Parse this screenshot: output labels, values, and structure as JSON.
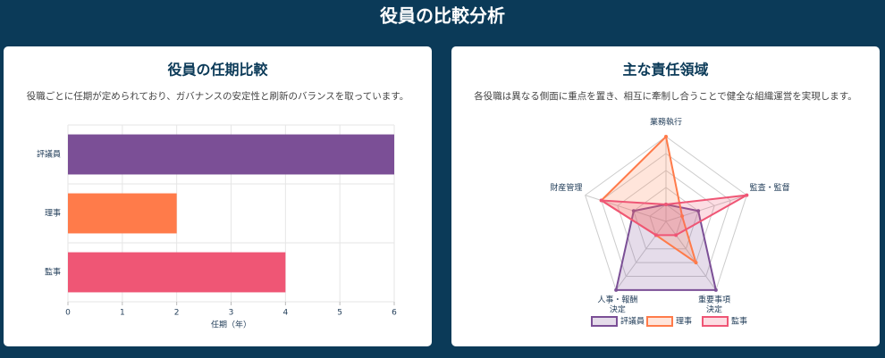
{
  "page_title": "役員の比較分析",
  "chart_data": [
    {
      "type": "bar",
      "title": "役員の任期比較",
      "subtitle": "役職ごとに任期が定められており、ガバナンスの安定性と刷新のバランスを取っています。",
      "categories": [
        "評議員",
        "理事",
        "監事"
      ],
      "values": [
        6,
        2,
        4
      ],
      "colors": [
        "#7b4f96",
        "#ff7b4a",
        "#ef5675"
      ],
      "x_label": "任期（年）",
      "xlim": [
        0,
        6
      ],
      "xticks": [
        0,
        1,
        2,
        3,
        4,
        5,
        6
      ],
      "grid": true
    },
    {
      "type": "radar",
      "title": "主な責任領域",
      "subtitle": "各役職は異なる側面に重点を置き、相互に牽制し合うことで健全な組織運営を実現します。",
      "categories": [
        [
          "業務執行"
        ],
        [
          "監査・監督"
        ],
        [
          "重要事項",
          "決定"
        ],
        [
          "人事・報酬",
          "決定"
        ],
        [
          "財産管理"
        ]
      ],
      "rlim": [
        0,
        5
      ],
      "rticks": [
        1,
        2,
        3,
        4,
        5
      ],
      "series": [
        {
          "name": "評議員",
          "color": "#7b4f96",
          "values": [
            1,
            2,
            5,
            5,
            2
          ]
        },
        {
          "name": "理事",
          "color": "#ff7b4a",
          "values": [
            5,
            1,
            3,
            1,
            4
          ]
        },
        {
          "name": "監事",
          "color": "#ef5675",
          "values": [
            1,
            5,
            1,
            1,
            4
          ]
        }
      ]
    }
  ]
}
